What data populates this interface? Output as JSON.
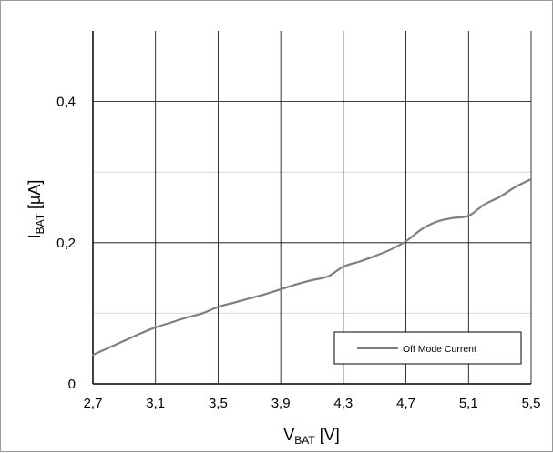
{
  "chart_data": {
    "type": "line",
    "title": "",
    "xlabel": {
      "main": "V",
      "sub": "BAT",
      "unit": " [V]"
    },
    "ylabel": {
      "main": "I",
      "sub": "BAT",
      "unit": " [µA]"
    },
    "xlim": [
      2.7,
      5.5
    ],
    "ylim": [
      0,
      0.5
    ],
    "x_ticks": [
      2.7,
      3.1,
      3.5,
      3.9,
      4.3,
      4.7,
      5.1,
      5.5
    ],
    "x_tick_labels": [
      "2,7",
      "3,1",
      "3,5",
      "3,9",
      "4,3",
      "4,7",
      "5,1",
      "5,5"
    ],
    "y_ticks": [
      0,
      0.2,
      0.4
    ],
    "y_tick_labels": [
      "0",
      "0,2",
      "0,4"
    ],
    "y_minor_gridlines": [
      0.1,
      0.3
    ],
    "grid": true,
    "legend": {
      "position": "bottom-right",
      "entries": [
        "Off Mode Current"
      ]
    },
    "series": [
      {
        "name": "Off Mode Current",
        "color": "#7f7f7f",
        "x": [
          2.7,
          2.8,
          2.9,
          3.0,
          3.1,
          3.2,
          3.3,
          3.4,
          3.5,
          3.6,
          3.7,
          3.8,
          3.9,
          4.0,
          4.1,
          4.2,
          4.3,
          4.4,
          4.5,
          4.6,
          4.7,
          4.8,
          4.9,
          5.0,
          5.1,
          5.2,
          5.3,
          5.4,
          5.5
        ],
        "y": [
          0.041,
          0.051,
          0.061,
          0.071,
          0.08,
          0.087,
          0.094,
          0.1,
          0.109,
          0.115,
          0.121,
          0.127,
          0.134,
          0.141,
          0.147,
          0.152,
          0.166,
          0.173,
          0.181,
          0.19,
          0.202,
          0.219,
          0.23,
          0.235,
          0.238,
          0.254,
          0.265,
          0.279,
          0.29
        ]
      }
    ]
  }
}
